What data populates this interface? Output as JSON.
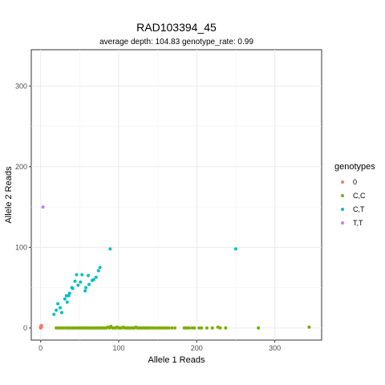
{
  "chart_data": {
    "type": "scatter",
    "title": "RAD103394_45",
    "subtitle": "average depth:  104.83  genotype_rate:  0.99",
    "xlabel": "Allele 1 Reads",
    "ylabel": "Allele 2 Reads",
    "xlim": [
      -12,
      360
    ],
    "ylim": [
      -15,
      345
    ],
    "xticks": [
      0,
      100,
      200,
      300
    ],
    "yticks": [
      0,
      100,
      200,
      300
    ],
    "grid": true,
    "legend": {
      "title": "genotypes",
      "position": "right",
      "entries": [
        {
          "label": "0",
          "color": "#F8766D"
        },
        {
          "label": "C,C",
          "color": "#7CAE00"
        },
        {
          "label": "C,T",
          "color": "#00BFC4"
        },
        {
          "label": "T,T",
          "color": "#C77CFF"
        }
      ]
    },
    "series": [
      {
        "name": "0",
        "color": "#F8766D",
        "points": [
          [
            0,
            0
          ],
          [
            0,
            2
          ],
          [
            1,
            1
          ],
          [
            1,
            3
          ],
          [
            0,
            1
          ]
        ]
      },
      {
        "name": "C,C",
        "color": "#7CAE00",
        "points": [
          [
            20,
            0
          ],
          [
            23,
            0
          ],
          [
            26,
            0
          ],
          [
            29,
            0
          ],
          [
            32,
            0
          ],
          [
            35,
            0
          ],
          [
            37,
            0
          ],
          [
            40,
            0
          ],
          [
            42,
            0
          ],
          [
            44,
            0
          ],
          [
            46,
            0
          ],
          [
            48,
            0
          ],
          [
            50,
            0
          ],
          [
            52,
            0
          ],
          [
            54,
            0
          ],
          [
            56,
            0
          ],
          [
            58,
            0
          ],
          [
            60,
            0
          ],
          [
            62,
            0
          ],
          [
            64,
            0
          ],
          [
            66,
            0
          ],
          [
            68,
            0
          ],
          [
            70,
            0
          ],
          [
            72,
            0
          ],
          [
            74,
            0
          ],
          [
            76,
            0
          ],
          [
            78,
            0
          ],
          [
            80,
            0
          ],
          [
            82,
            0
          ],
          [
            84,
            0
          ],
          [
            86,
            1
          ],
          [
            88,
            0
          ],
          [
            90,
            2
          ],
          [
            92,
            0
          ],
          [
            94,
            0
          ],
          [
            96,
            0
          ],
          [
            98,
            1
          ],
          [
            100,
            0
          ],
          [
            102,
            0
          ],
          [
            104,
            0
          ],
          [
            106,
            1
          ],
          [
            108,
            0
          ],
          [
            110,
            0
          ],
          [
            112,
            0
          ],
          [
            114,
            0
          ],
          [
            116,
            0
          ],
          [
            118,
            0
          ],
          [
            120,
            0
          ],
          [
            122,
            1
          ],
          [
            124,
            0
          ],
          [
            126,
            0
          ],
          [
            128,
            0
          ],
          [
            130,
            0
          ],
          [
            132,
            0
          ],
          [
            134,
            0
          ],
          [
            136,
            0
          ],
          [
            138,
            0
          ],
          [
            140,
            0
          ],
          [
            143,
            0
          ],
          [
            146,
            0
          ],
          [
            149,
            0
          ],
          [
            152,
            0
          ],
          [
            155,
            0
          ],
          [
            158,
            0
          ],
          [
            161,
            0
          ],
          [
            164,
            0
          ],
          [
            168,
            0
          ],
          [
            172,
            0
          ],
          [
            184,
            0
          ],
          [
            187,
            0
          ],
          [
            190,
            0
          ],
          [
            194,
            0
          ],
          [
            197,
            0
          ],
          [
            203,
            0
          ],
          [
            206,
            0
          ],
          [
            213,
            0
          ],
          [
            220,
            0
          ],
          [
            227,
            1
          ],
          [
            230,
            0
          ],
          [
            237,
            0
          ],
          [
            279,
            0
          ],
          [
            344,
            1
          ]
        ]
      },
      {
        "name": "C,T",
        "color": "#00BFC4",
        "points": [
          [
            17,
            17
          ],
          [
            20,
            22
          ],
          [
            22,
            30
          ],
          [
            25,
            25
          ],
          [
            27,
            19
          ],
          [
            31,
            36
          ],
          [
            33,
            40
          ],
          [
            34,
            32
          ],
          [
            36,
            40
          ],
          [
            37,
            43
          ],
          [
            40,
            50
          ],
          [
            41,
            49
          ],
          [
            44,
            58
          ],
          [
            46,
            66
          ],
          [
            48,
            53
          ],
          [
            51,
            57
          ],
          [
            53,
            66
          ],
          [
            57,
            46
          ],
          [
            58,
            50
          ],
          [
            61,
            65
          ],
          [
            62,
            54
          ],
          [
            66,
            59
          ],
          [
            68,
            60
          ],
          [
            71,
            63
          ],
          [
            74,
            71
          ],
          [
            76,
            75
          ],
          [
            89,
            98
          ],
          [
            250,
            98
          ]
        ]
      },
      {
        "name": "T,T",
        "color": "#C77CFF",
        "points": [
          [
            3,
            150
          ]
        ]
      }
    ]
  }
}
